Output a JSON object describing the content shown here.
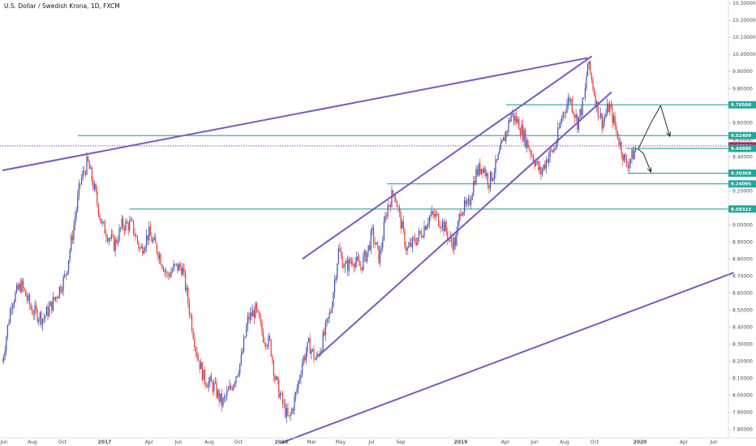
{
  "chart_data": {
    "type": "candlestick",
    "title": "U.S. Dollar / Swedish Krona, 1D, FXCM",
    "x_ticks": [
      "Jun",
      "Aug",
      "Oct",
      "2017",
      "Apr",
      "Jun",
      "Aug",
      "Oct",
      "2018",
      "Mar",
      "May",
      "Jul",
      "Sep",
      "2019",
      "Apr",
      "Jun",
      "Aug",
      "Oct",
      "2020",
      "Apr",
      "Jun"
    ],
    "y_ticks": [
      "10.30000",
      "10.20000",
      "10.10000",
      "10.00000",
      "9.90000",
      "9.80000",
      "9.60000",
      "9.50000",
      "9.40000",
      "9.30000",
      "9.20000",
      "9.00000",
      "8.90000",
      "8.80000",
      "8.70000",
      "8.60000",
      "8.50000",
      "8.40000",
      "8.30000",
      "8.20000",
      "8.10000",
      "8.00000",
      "7.90000",
      "7.80000"
    ],
    "y_range": [
      7.75,
      10.32
    ],
    "price_levels": [
      {
        "value": 9.705,
        "label": "9.70500",
        "color": "#26a69a"
      },
      {
        "value": 9.52409,
        "label": "9.52409",
        "color": "#26a69a"
      },
      {
        "value": 9.46364,
        "label": "9.46364",
        "color": "#b71c5c"
      },
      {
        "value": 9.4489,
        "label": "9.44890",
        "color": "#26a69a"
      },
      {
        "value": 9.30369,
        "label": "9.30369",
        "color": "#26a69a"
      },
      {
        "value": 9.24095,
        "label": "9.24095",
        "color": "#26a69a"
      },
      {
        "value": 9.09323,
        "label": "9.09323",
        "color": "#26a69a"
      }
    ],
    "price_path": [
      {
        "date": "2016-06-01",
        "close": 8.2
      },
      {
        "date": "2016-06-20",
        "close": 8.55
      },
      {
        "date": "2016-07-10",
        "close": 8.65
      },
      {
        "date": "2016-08-01",
        "close": 8.5
      },
      {
        "date": "2016-08-25",
        "close": 8.45
      },
      {
        "date": "2016-09-15",
        "close": 8.55
      },
      {
        "date": "2016-10-10",
        "close": 8.7
      },
      {
        "date": "2016-10-25",
        "close": 8.95
      },
      {
        "date": "2016-11-10",
        "close": 9.25
      },
      {
        "date": "2016-11-25",
        "close": 9.37
      },
      {
        "date": "2016-12-10",
        "close": 9.2
      },
      {
        "date": "2016-12-25",
        "close": 9.0
      },
      {
        "date": "2017-01-20",
        "close": 8.88
      },
      {
        "date": "2017-02-05",
        "close": 9.0
      },
      {
        "date": "2017-02-25",
        "close": 9.0
      },
      {
        "date": "2017-03-15",
        "close": 8.85
      },
      {
        "date": "2017-04-01",
        "close": 8.95
      },
      {
        "date": "2017-04-20",
        "close": 8.85
      },
      {
        "date": "2017-05-10",
        "close": 8.7
      },
      {
        "date": "2017-05-25",
        "close": 8.75
      },
      {
        "date": "2017-06-10",
        "close": 8.75
      },
      {
        "date": "2017-06-25",
        "close": 8.5
      },
      {
        "date": "2017-07-10",
        "close": 8.25
      },
      {
        "date": "2017-07-25",
        "close": 8.1
      },
      {
        "date": "2017-08-15",
        "close": 8.05
      },
      {
        "date": "2017-09-01",
        "close": 7.95
      },
      {
        "date": "2017-09-20",
        "close": 8.05
      },
      {
        "date": "2017-10-10",
        "close": 8.2
      },
      {
        "date": "2017-10-25",
        "close": 8.45
      },
      {
        "date": "2017-11-10",
        "close": 8.5
      },
      {
        "date": "2017-11-25",
        "close": 8.35
      },
      {
        "date": "2017-12-10",
        "close": 8.3
      },
      {
        "date": "2017-12-20",
        "close": 8.1
      },
      {
        "date": "2018-01-05",
        "close": 7.95
      },
      {
        "date": "2018-01-18",
        "close": 7.85
      },
      {
        "date": "2018-02-01",
        "close": 8.0
      },
      {
        "date": "2018-02-15",
        "close": 8.2
      },
      {
        "date": "2018-03-01",
        "close": 8.3
      },
      {
        "date": "2018-03-15",
        "close": 8.2
      },
      {
        "date": "2018-04-01",
        "close": 8.35
      },
      {
        "date": "2018-04-15",
        "close": 8.5
      },
      {
        "date": "2018-05-01",
        "close": 8.85
      },
      {
        "date": "2018-05-15",
        "close": 8.75
      },
      {
        "date": "2018-06-01",
        "close": 8.8
      },
      {
        "date": "2018-06-15",
        "close": 8.75
      },
      {
        "date": "2018-07-01",
        "close": 8.85
      },
      {
        "date": "2018-07-10",
        "close": 8.95
      },
      {
        "date": "2018-07-25",
        "close": 8.8
      },
      {
        "date": "2018-08-10",
        "close": 9.1
      },
      {
        "date": "2018-08-25",
        "close": 9.2
      },
      {
        "date": "2018-09-05",
        "close": 9.05
      },
      {
        "date": "2018-09-20",
        "close": 8.85
      },
      {
        "date": "2018-10-05",
        "close": 8.9
      },
      {
        "date": "2018-10-20",
        "close": 8.95
      },
      {
        "date": "2018-11-05",
        "close": 9.05
      },
      {
        "date": "2018-11-20",
        "close": 9.05
      },
      {
        "date": "2018-12-05",
        "close": 9.0
      },
      {
        "date": "2018-12-20",
        "close": 8.9
      },
      {
        "date": "2018-12-31",
        "close": 8.9
      },
      {
        "date": "2019-01-10",
        "close": 9.1
      },
      {
        "date": "2019-01-25",
        "close": 9.1
      },
      {
        "date": "2019-02-10",
        "close": 9.3
      },
      {
        "date": "2019-02-25",
        "close": 9.35
      },
      {
        "date": "2019-03-10",
        "close": 9.25
      },
      {
        "date": "2019-03-25",
        "close": 9.35
      },
      {
        "date": "2019-04-10",
        "close": 9.5
      },
      {
        "date": "2019-04-25",
        "close": 9.65
      },
      {
        "date": "2019-05-10",
        "close": 9.6
      },
      {
        "date": "2019-05-25",
        "close": 9.5
      },
      {
        "date": "2019-06-10",
        "close": 9.4
      },
      {
        "date": "2019-06-25",
        "close": 9.3
      },
      {
        "date": "2019-07-10",
        "close": 9.4
      },
      {
        "date": "2019-07-25",
        "close": 9.45
      },
      {
        "date": "2019-08-10",
        "close": 9.65
      },
      {
        "date": "2019-08-25",
        "close": 9.75
      },
      {
        "date": "2019-09-10",
        "close": 9.6
      },
      {
        "date": "2019-09-25",
        "close": 9.75
      },
      {
        "date": "2019-10-01",
        "close": 9.95
      },
      {
        "date": "2019-10-10",
        "close": 9.85
      },
      {
        "date": "2019-10-20",
        "close": 9.7
      },
      {
        "date": "2019-11-01",
        "close": 9.6
      },
      {
        "date": "2019-11-15",
        "close": 9.7
      },
      {
        "date": "2019-11-25",
        "close": 9.6
      },
      {
        "date": "2019-12-10",
        "close": 9.45
      },
      {
        "date": "2019-12-20",
        "close": 9.35
      },
      {
        "date": "2020-01-01",
        "close": 9.4
      },
      {
        "date": "2020-01-10",
        "close": 9.45
      }
    ],
    "trend_lines": [
      {
        "from": {
          "date": "2016-06-01",
          "value": 9.32
        },
        "to": {
          "date": "2019-10-01",
          "value": 9.98
        }
      },
      {
        "from": {
          "date": "2018-02-15",
          "value": 8.8
        },
        "to": {
          "date": "2019-10-10",
          "value": 9.99
        }
      },
      {
        "from": {
          "date": "2018-03-20",
          "value": 8.23
        },
        "to": {
          "date": "2019-11-20",
          "value": 9.78
        }
      },
      {
        "from": {
          "date": "2018-01-01",
          "value": 7.72
        },
        "to": {
          "date": "2020-07-31",
          "value": 8.72
        }
      }
    ],
    "horizontal_segments": [
      {
        "value": 9.705,
        "from": "2019-04-15"
      },
      {
        "value": 9.52409,
        "from": "2016-11-05"
      },
      {
        "value": 9.4489,
        "from": "2019-12-20"
      },
      {
        "value": 9.30369,
        "from": "2019-12-25"
      },
      {
        "value": 9.24095,
        "from": "2018-08-10"
      },
      {
        "value": 9.09323,
        "from": "2017-02-20"
      }
    ],
    "current_price": 9.46364,
    "scenario_arrows": [
      {
        "points": [
          {
            "date": "2020-01-15",
            "value": 9.45
          },
          {
            "date": "2020-02-10",
            "value": 9.6
          },
          {
            "date": "2020-03-01",
            "value": 9.7
          },
          {
            "date": "2020-03-20",
            "value": 9.52
          }
        ]
      },
      {
        "points": [
          {
            "date": "2020-01-12",
            "value": 9.45
          },
          {
            "date": "2020-01-25",
            "value": 9.42
          },
          {
            "date": "2020-02-10",
            "value": 9.31
          }
        ]
      }
    ]
  }
}
